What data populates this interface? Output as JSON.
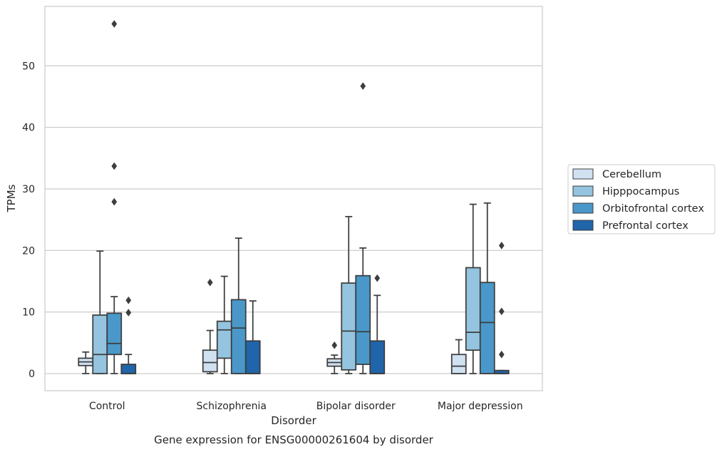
{
  "chart_data": {
    "type": "boxplot",
    "title": "",
    "caption": "Gene expression for ENSG00000261604 by disorder",
    "xlabel": "Disorder",
    "ylabel": "TPMs",
    "ylim": [
      -2.7,
      59.5
    ],
    "yticks": [
      0,
      10,
      20,
      30,
      40,
      50
    ],
    "grid": "horizontal",
    "legend_position": "right",
    "categories": [
      "Control",
      "Schizophrenia",
      "Bipolar disorder",
      "Major depression"
    ],
    "series": [
      {
        "name": "Cerebellum",
        "color": "#d0e1f2",
        "boxes": [
          {
            "whislo": 0,
            "q1": 1.3,
            "med": 1.9,
            "q3": 2.5,
            "whishi": 3.5,
            "fliers": []
          },
          {
            "whislo": 0,
            "q1": 0.3,
            "med": 1.8,
            "q3": 3.8,
            "whishi": 7.0,
            "fliers": [
              14.8
            ]
          },
          {
            "whislo": 0,
            "q1": 1.2,
            "med": 1.8,
            "q3": 2.4,
            "whishi": 3.0,
            "fliers": [
              4.6
            ]
          },
          {
            "whislo": 0,
            "q1": 0,
            "med": 1.2,
            "q3": 3.1,
            "whishi": 5.5,
            "fliers": []
          }
        ]
      },
      {
        "name": "Hipppocampus",
        "color": "#94c4df",
        "boxes": [
          {
            "whislo": 0,
            "q1": 0,
            "med": 3.1,
            "q3": 9.5,
            "whishi": 19.9,
            "fliers": []
          },
          {
            "whislo": 0,
            "q1": 2.5,
            "med": 7.1,
            "q3": 8.5,
            "whishi": 15.8,
            "fliers": []
          },
          {
            "whislo": 0,
            "q1": 0.6,
            "med": 6.9,
            "q3": 14.7,
            "whishi": 25.5,
            "fliers": []
          },
          {
            "whislo": 0,
            "q1": 3.8,
            "med": 6.7,
            "q3": 17.2,
            "whishi": 27.5,
            "fliers": []
          }
        ]
      },
      {
        "name": "Orbitofrontal cortex",
        "color": "#4a98c9",
        "boxes": [
          {
            "whislo": 0,
            "q1": 3.1,
            "med": 4.9,
            "q3": 9.8,
            "whishi": 12.5,
            "fliers": [
              27.9,
              33.7,
              56.8
            ]
          },
          {
            "whislo": 0,
            "q1": 0,
            "med": 7.4,
            "q3": 12.0,
            "whishi": 22.0,
            "fliers": []
          },
          {
            "whislo": 0,
            "q1": 1.5,
            "med": 6.8,
            "q3": 15.9,
            "whishi": 20.4,
            "fliers": [
              46.7
            ]
          },
          {
            "whislo": 0,
            "q1": 0,
            "med": 8.3,
            "q3": 14.8,
            "whishi": 27.7,
            "fliers": []
          }
        ]
      },
      {
        "name": "Prefrontal cortex",
        "color": "#2064aa",
        "boxes": [
          {
            "whislo": 0,
            "q1": 0,
            "med": 0,
            "q3": 1.5,
            "whishi": 3.1,
            "fliers": [
              9.9,
              11.9
            ]
          },
          {
            "whislo": 0,
            "q1": 0,
            "med": 0,
            "q3": 5.3,
            "whishi": 11.8,
            "fliers": []
          },
          {
            "whislo": 0,
            "q1": 0,
            "med": 0,
            "q3": 5.3,
            "whishi": 12.7,
            "fliers": [
              15.5
            ]
          },
          {
            "whislo": 0,
            "q1": 0,
            "med": 0,
            "q3": 0.5,
            "whishi": 0.5,
            "fliers": [
              3.1,
              10.1,
              20.8
            ]
          }
        ]
      }
    ]
  }
}
